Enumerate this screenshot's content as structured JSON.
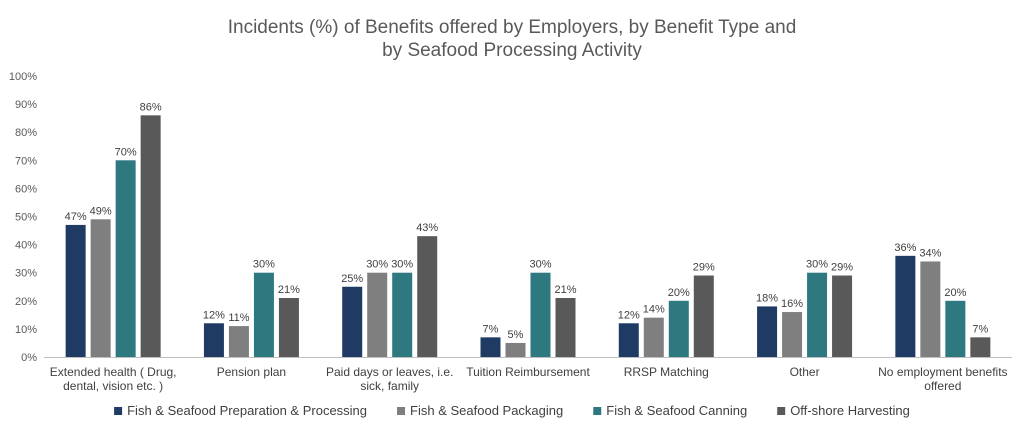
{
  "colors": {
    "series": [
      "#1f3b63",
      "#7f7f7f",
      "#2e7880",
      "#595959"
    ],
    "grid": "#d9d9d9",
    "axis": "#bfbfbf"
  },
  "chart_data": {
    "type": "bar",
    "title": [
      "Incidents (%) of Benefits offered by Employers, by  Benefit Type and",
      "by Seafood Processing Activity"
    ],
    "categories": [
      [
        "Extended health ( Drug,",
        "dental, vision etc. )"
      ],
      [
        "Pension plan"
      ],
      [
        "Paid days or leaves, i.e.",
        "sick, family"
      ],
      [
        "Tuition Reimbursement"
      ],
      [
        "RRSP Matching"
      ],
      [
        "Other"
      ],
      [
        "No employment benefits",
        "offered"
      ]
    ],
    "series": [
      {
        "name": "Fish & Seafood Preparation & Processing",
        "values": [
          47,
          12,
          25,
          7,
          12,
          18,
          36
        ]
      },
      {
        "name": "Fish & Seafood Packaging",
        "values": [
          49,
          11,
          30,
          5,
          14,
          16,
          34
        ]
      },
      {
        "name": "Fish & Seafood Canning",
        "values": [
          70,
          30,
          30,
          30,
          20,
          30,
          20
        ]
      },
      {
        "name": "Off-shore Harvesting",
        "values": [
          86,
          21,
          43,
          21,
          29,
          29,
          7
        ]
      }
    ],
    "ylim": [
      0,
      100
    ],
    "yticks": [
      0,
      10,
      20,
      30,
      40,
      50,
      60,
      70,
      80,
      90,
      100
    ],
    "value_suffix": "%",
    "grid": false,
    "legend": "bottom"
  }
}
